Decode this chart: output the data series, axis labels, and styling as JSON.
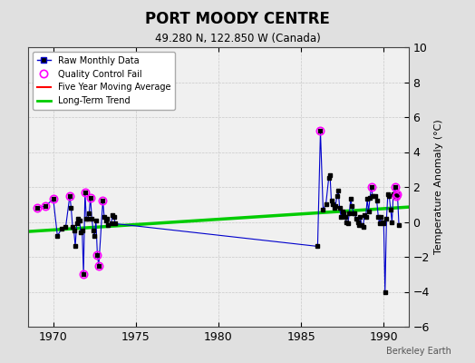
{
  "title": "PORT MOODY CENTRE",
  "subtitle": "49.280 N, 122.850 W (Canada)",
  "ylabel": "Temperature Anomaly (°C)",
  "attribution": "Berkeley Earth",
  "xlim": [
    1968.5,
    1991.5
  ],
  "ylim": [
    -6,
    10
  ],
  "yticks": [
    -6,
    -4,
    -2,
    0,
    2,
    4,
    6,
    8,
    10
  ],
  "xticks": [
    1970,
    1975,
    1980,
    1985,
    1990
  ],
  "background_color": "#e0e0e0",
  "plot_bg_color": "#f0f0f0",
  "raw_data": [
    [
      1969.0,
      0.8
    ],
    [
      1969.5,
      0.9
    ],
    [
      1970.0,
      1.3
    ],
    [
      1970.25,
      -0.8
    ],
    [
      1970.5,
      -0.4
    ],
    [
      1970.75,
      -0.3
    ],
    [
      1971.0,
      1.5
    ],
    [
      1971.08,
      0.8
    ],
    [
      1971.17,
      -0.3
    ],
    [
      1971.25,
      -0.5
    ],
    [
      1971.33,
      -1.4
    ],
    [
      1971.42,
      -0.1
    ],
    [
      1971.5,
      0.2
    ],
    [
      1971.58,
      0.1
    ],
    [
      1971.67,
      -0.6
    ],
    [
      1971.75,
      -0.5
    ],
    [
      1971.83,
      -3.0
    ],
    [
      1971.92,
      1.7
    ],
    [
      1972.0,
      0.2
    ],
    [
      1972.08,
      0.2
    ],
    [
      1972.17,
      0.5
    ],
    [
      1972.25,
      1.4
    ],
    [
      1972.33,
      0.2
    ],
    [
      1972.42,
      -0.5
    ],
    [
      1972.5,
      -0.8
    ],
    [
      1972.58,
      0.1
    ],
    [
      1972.67,
      -1.9
    ],
    [
      1972.75,
      -2.5
    ],
    [
      1973.0,
      1.2
    ],
    [
      1973.08,
      0.3
    ],
    [
      1973.17,
      0.1
    ],
    [
      1973.25,
      0.2
    ],
    [
      1973.33,
      -0.2
    ],
    [
      1973.5,
      -0.1
    ],
    [
      1973.58,
      0.4
    ],
    [
      1973.67,
      0.3
    ],
    [
      1973.75,
      -0.1
    ],
    [
      1986.0,
      -1.4
    ],
    [
      1986.17,
      5.2
    ],
    [
      1986.33,
      0.7
    ],
    [
      1986.5,
      1.0
    ],
    [
      1986.67,
      2.5
    ],
    [
      1986.75,
      2.7
    ],
    [
      1986.83,
      1.2
    ],
    [
      1986.92,
      1.0
    ],
    [
      1987.0,
      0.8
    ],
    [
      1987.08,
      0.9
    ],
    [
      1987.17,
      1.5
    ],
    [
      1987.25,
      1.8
    ],
    [
      1987.33,
      0.8
    ],
    [
      1987.42,
      0.3
    ],
    [
      1987.5,
      0.6
    ],
    [
      1987.58,
      0.5
    ],
    [
      1987.67,
      0.3
    ],
    [
      1987.75,
      0.0
    ],
    [
      1987.83,
      -0.1
    ],
    [
      1987.92,
      0.5
    ],
    [
      1988.0,
      1.3
    ],
    [
      1988.08,
      0.9
    ],
    [
      1988.17,
      0.5
    ],
    [
      1988.25,
      0.5
    ],
    [
      1988.33,
      0.2
    ],
    [
      1988.42,
      0.0
    ],
    [
      1988.5,
      -0.2
    ],
    [
      1988.58,
      0.3
    ],
    [
      1988.67,
      -0.2
    ],
    [
      1988.75,
      -0.3
    ],
    [
      1988.83,
      0.4
    ],
    [
      1988.92,
      0.3
    ],
    [
      1989.0,
      1.3
    ],
    [
      1989.08,
      0.6
    ],
    [
      1989.17,
      1.4
    ],
    [
      1989.25,
      2.0
    ],
    [
      1989.33,
      1.5
    ],
    [
      1989.5,
      1.5
    ],
    [
      1989.58,
      1.2
    ],
    [
      1989.67,
      0.3
    ],
    [
      1989.75,
      -0.1
    ],
    [
      1989.83,
      0.3
    ],
    [
      1989.92,
      0.0
    ],
    [
      1990.0,
      -0.1
    ],
    [
      1990.08,
      -4.0
    ],
    [
      1990.17,
      0.2
    ],
    [
      1990.25,
      1.6
    ],
    [
      1990.33,
      1.5
    ],
    [
      1990.42,
      0.7
    ],
    [
      1990.5,
      0.0
    ],
    [
      1990.58,
      1.6
    ],
    [
      1990.67,
      2.0
    ],
    [
      1990.75,
      1.5
    ],
    [
      1990.83,
      1.6
    ],
    [
      1990.92,
      -0.2
    ]
  ],
  "qc_fail_points": [
    [
      1969.0,
      0.8
    ],
    [
      1969.5,
      0.9
    ],
    [
      1970.0,
      1.3
    ],
    [
      1971.0,
      1.5
    ],
    [
      1971.92,
      1.7
    ],
    [
      1972.25,
      1.4
    ],
    [
      1972.75,
      -2.5
    ],
    [
      1971.83,
      -3.0
    ],
    [
      1973.0,
      1.2
    ],
    [
      1972.67,
      -1.9
    ],
    [
      1986.17,
      5.2
    ],
    [
      1989.25,
      2.0
    ],
    [
      1990.67,
      2.0
    ],
    [
      1990.75,
      1.5
    ],
    [
      1990.83,
      1.6
    ]
  ],
  "trend_x": [
    1968.5,
    1991.5
  ],
  "trend_y": [
    -0.55,
    0.85
  ],
  "raw_color": "#0000cc",
  "raw_marker_color": "#000000",
  "qc_color": "#ff00ff",
  "moving_avg_color": "#ff0000",
  "trend_color": "#00cc00",
  "grid_color": "#c8c8c8"
}
